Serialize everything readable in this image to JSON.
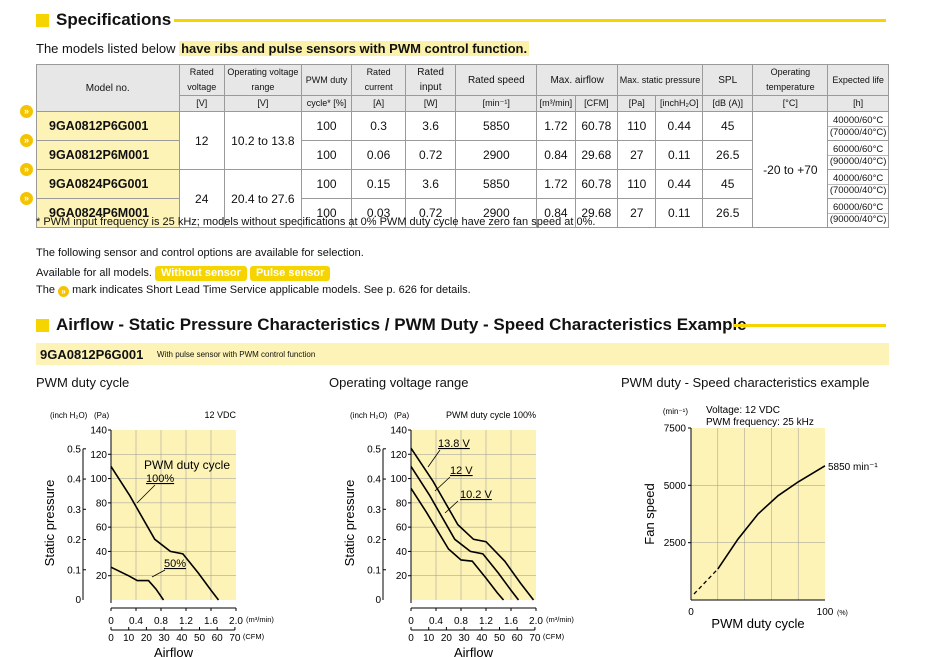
{
  "specifications": {
    "title": "Specifications"
  },
  "intro": {
    "lead": "The models listed below ",
    "highlight": "have ribs and pulse sensors with PWM control function."
  },
  "spec_table": {
    "headers": [
      {
        "label": "Model no.",
        "unit": ""
      },
      {
        "label": "Rated voltage",
        "unit": "[V]"
      },
      {
        "label": "Operating voltage range",
        "unit": "[V]"
      },
      {
        "label": "PWM duty",
        "unit": "cycle* [%]"
      },
      {
        "label": "Rated current",
        "unit": "[A]"
      },
      {
        "label": "Rated input",
        "unit": "[W]"
      },
      {
        "label": "Rated speed",
        "unit": "[min⁻¹]"
      },
      {
        "label": "Max. airflow",
        "unit": "[m³/min]",
        "unit2": "[CFM]"
      },
      {
        "label": "Max. static pressure",
        "unit": "[Pa]",
        "unit2": "[inchH₂O]"
      },
      {
        "label": "SPL",
        "unit": "[dB (A)]"
      },
      {
        "label": "Operating temperature",
        "unit": "[°C]"
      },
      {
        "label": "Expected life",
        "unit": "[h]"
      }
    ],
    "rows": [
      {
        "model": "9GA0812P6G001",
        "pwm": "100",
        "current": "0.3",
        "input": "3.6",
        "speed": "5850",
        "airflow_m3": "1.72",
        "airflow_cfm": "60.78",
        "pressure_pa": "110",
        "pressure_inch": "0.44",
        "spl": "45",
        "life1": "40000/60°C",
        "life2": "(70000/40°C)"
      },
      {
        "model": "9GA0812P6M001",
        "pwm": "100",
        "current": "0.06",
        "input": "0.72",
        "speed": "2900",
        "airflow_m3": "0.84",
        "airflow_cfm": "29.68",
        "pressure_pa": "27",
        "pressure_inch": "0.11",
        "spl": "26.5",
        "life1": "60000/60°C",
        "life2": "(90000/40°C)"
      },
      {
        "model": "9GA0824P6G001",
        "pwm": "100",
        "current": "0.15",
        "input": "3.6",
        "speed": "5850",
        "airflow_m3": "1.72",
        "airflow_cfm": "60.78",
        "pressure_pa": "110",
        "pressure_inch": "0.44",
        "spl": "45",
        "life1": "40000/60°C",
        "life2": "(70000/40°C)"
      },
      {
        "model": "9GA0824P6M001",
        "pwm": "100",
        "current": "0.03",
        "input": "0.72",
        "speed": "2900",
        "airflow_m3": "0.84",
        "airflow_cfm": "29.68",
        "pressure_pa": "27",
        "pressure_inch": "0.11",
        "spl": "26.5",
        "life1": "60000/60°C",
        "life2": "(90000/40°C)"
      }
    ],
    "group12": {
      "rated_voltage": "12",
      "range": "10.2 to 13.8"
    },
    "group24": {
      "rated_voltage": "24",
      "range": "20.4 to 27.6"
    },
    "op_temp": "-20 to +70",
    "mark_symbol": "»"
  },
  "notes": {
    "footnote": "* PWM input frequency is 25 kHz; models without specifications at 0% PWM duty cycle have zero fan speed at 0%.",
    "options_intro": "The following sensor and control options are available for selection.",
    "available": "Available for all models.",
    "tag1": "Without sensor",
    "tag2": "Pulse sensor",
    "mark_prefix": "The ",
    "mark_text": " mark indicates Short Lead Time Service applicable models. See p. 626 for details."
  },
  "airflow_section": {
    "title": "Airflow - Static Pressure Characteristics / PWM Duty - Speed Characteristics Example",
    "model": "9GA0812P6G001",
    "subtitle": "With pulse sensor with PWM control function"
  },
  "colors": {
    "accent": "#f5d400",
    "band": "#fdf3b6",
    "chart_bg": "#fdf3b6"
  },
  "chart_data": [
    {
      "type": "line",
      "title": "PWM duty cycle",
      "unit_left": "(inch H₂O)",
      "unit_pa": "(Pa)",
      "condition": "12 VDC",
      "xlabel": "Airflow",
      "x_unit_m3": "(m³/min)",
      "x_unit_cfm": "(CFM)",
      "ylabel": "Static pressure",
      "legend_label": "PWM duty cycle",
      "ylim_pa": [
        0,
        140
      ],
      "y_ticks_pa": [
        "20",
        "40",
        "60",
        "80",
        "100",
        "120",
        "140"
      ],
      "y_ticks_inch": [
        "0.1",
        "0.2",
        "0.3",
        "0.4",
        "0.5"
      ],
      "x_ticks_m3": [
        "0",
        "0.4",
        "0.8",
        "1.2",
        "1.6",
        "2.0"
      ],
      "x_ticks_cfm": [
        "0",
        "10",
        "20",
        "30",
        "40",
        "50",
        "60",
        "70"
      ],
      "series": [
        {
          "name": "100%",
          "x": [
            0,
            0.3,
            0.7,
            0.95,
            1.15,
            1.4,
            1.6,
            1.72
          ],
          "y": [
            110,
            86,
            50,
            40,
            38,
            22,
            8,
            0
          ]
        },
        {
          "name": "50%",
          "x": [
            0,
            0.28,
            0.42,
            0.6,
            0.72,
            0.84
          ],
          "y": [
            27,
            20,
            16,
            16,
            9,
            0
          ]
        }
      ]
    },
    {
      "type": "line",
      "title": "Operating voltage range",
      "unit_left": "(inch H₂O)",
      "unit_pa": "(Pa)",
      "condition": "PWM duty cycle 100%",
      "xlabel": "Airflow",
      "x_unit_m3": "(m³/min)",
      "x_unit_cfm": "(CFM)",
      "ylabel": "Static pressure",
      "ylim_pa": [
        0,
        140
      ],
      "y_ticks_pa": [
        "20",
        "40",
        "60",
        "80",
        "100",
        "120",
        "140"
      ],
      "y_ticks_inch": [
        "0.1",
        "0.2",
        "0.3",
        "0.4",
        "0.5"
      ],
      "x_ticks_m3": [
        "0",
        "0.4",
        "0.8",
        "1.2",
        "1.6",
        "2.0"
      ],
      "x_ticks_cfm": [
        "0",
        "10",
        "20",
        "30",
        "40",
        "50",
        "60",
        "70"
      ],
      "series": [
        {
          "name": "13.8 V",
          "x": [
            0,
            0.35,
            0.75,
            1.0,
            1.2,
            1.5,
            1.75,
            1.96
          ],
          "y": [
            125,
            98,
            62,
            50,
            48,
            32,
            14,
            0
          ]
        },
        {
          "name": "12 V",
          "x": [
            0,
            0.3,
            0.7,
            0.95,
            1.15,
            1.4,
            1.6,
            1.72
          ],
          "y": [
            110,
            86,
            50,
            40,
            38,
            22,
            8,
            0
          ]
        },
        {
          "name": "10.2 V",
          "x": [
            0,
            0.25,
            0.6,
            0.8,
            0.98,
            1.2,
            1.38,
            1.48
          ],
          "y": [
            92,
            72,
            42,
            33,
            32,
            18,
            6,
            0
          ]
        }
      ]
    },
    {
      "type": "line",
      "title": "PWM duty - Speed characteristics example",
      "condition1": "Voltage: 12 VDC",
      "condition2": "PWM frequency: 25 kHz",
      "y_unit": "(min⁻¹)",
      "ylabel": "Fan speed",
      "xlabel": "PWM duty cycle",
      "x_unit": "(%)",
      "y_ticks": [
        "2500",
        "5000",
        "7500"
      ],
      "x_ticks": [
        "0",
        "100"
      ],
      "end_label": "5850 min⁻¹",
      "series": [
        {
          "x": [
            20,
            35,
            50,
            65,
            80,
            100
          ],
          "y": [
            1350,
            2650,
            3750,
            4550,
            5150,
            5850
          ]
        }
      ],
      "dashed_segment": {
        "x": [
          0,
          20
        ],
        "y": [
          0,
          1350
        ]
      }
    }
  ]
}
